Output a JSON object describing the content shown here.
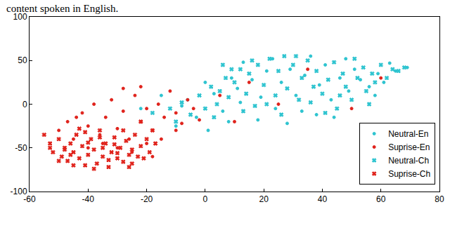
{
  "chart_data": {
    "type": "scatter",
    "annotations": [
      "content spoken in English."
    ],
    "xlim": [
      -60,
      80
    ],
    "xticks": [
      -60,
      -40,
      -20,
      0,
      20,
      40,
      60,
      80
    ],
    "ylim": [
      -100,
      100
    ],
    "yticks": [
      -100,
      -50,
      0,
      50,
      100
    ],
    "grid": false,
    "legend": "lower right",
    "series": [
      {
        "name": "Neutral-En",
        "color": "#2ec4d0",
        "marker": "dot",
        "x": [
          -22,
          -15,
          -10,
          -6,
          -3,
          0,
          3,
          6,
          9,
          11,
          13,
          16,
          19,
          21,
          23,
          26,
          29,
          31,
          34,
          36,
          39,
          41,
          43,
          46,
          49,
          51,
          53,
          56,
          59,
          61,
          63,
          65,
          69,
          1,
          8,
          18,
          28,
          38,
          48,
          58,
          -8,
          12,
          24,
          33,
          44
        ],
        "y": [
          -5,
          10,
          -25,
          5,
          -15,
          25,
          12,
          -8,
          30,
          18,
          48,
          28,
          8,
          38,
          52,
          25,
          40,
          10,
          33,
          55,
          22,
          45,
          5,
          30,
          15,
          40,
          28,
          20,
          35,
          25,
          47,
          38,
          42,
          -30,
          -20,
          -18,
          -22,
          -12,
          52,
          10,
          -2,
          2,
          -5,
          -8,
          -15
        ]
      },
      {
        "name": "Suprise-En",
        "color": "#e0231c",
        "marker": "dot",
        "x": [
          -50,
          -47,
          -45,
          -42,
          -40,
          -38,
          -36,
          -34,
          -32,
          -30,
          -28,
          -26,
          -24,
          -22,
          -20,
          -18,
          -16,
          -14,
          -12,
          -10,
          -8,
          -6,
          -4,
          -2,
          -35,
          -30,
          -25,
          -20,
          -15,
          -40,
          -28,
          -22,
          5,
          10,
          15,
          25,
          35,
          50,
          60,
          -44,
          -18,
          -10
        ],
        "y": [
          -30,
          -20,
          -40,
          -10,
          -25,
          0,
          -35,
          -15,
          5,
          -28,
          -8,
          -40,
          10,
          -20,
          -5,
          -30,
          0,
          -15,
          15,
          -10,
          -22,
          5,
          -5,
          -18,
          -45,
          -50,
          -55,
          -45,
          -40,
          -50,
          18,
          20,
          10,
          -20,
          25,
          0,
          40,
          -5,
          30,
          -15,
          -60,
          -30
        ]
      },
      {
        "name": "Neutral-Ch",
        "color": "#2ec4d0",
        "marker": "x",
        "x": [
          -18,
          -12,
          -8,
          -5,
          -2,
          0,
          2,
          4,
          5,
          7,
          8,
          10,
          12,
          14,
          15,
          17,
          18,
          20,
          22,
          24,
          25,
          27,
          28,
          30,
          32,
          33,
          35,
          37,
          38,
          40,
          42,
          44,
          45,
          47,
          48,
          50,
          52,
          54,
          55,
          57,
          58,
          60,
          62,
          64,
          66,
          68,
          -10,
          3,
          9,
          21,
          31,
          41,
          51,
          13,
          26,
          36,
          46,
          56,
          6,
          16
        ],
        "y": [
          -10,
          -5,
          2,
          -12,
          10,
          -5,
          20,
          0,
          15,
          30,
          8,
          25,
          40,
          12,
          35,
          -2,
          45,
          22,
          52,
          10,
          38,
          55,
          18,
          45,
          5,
          30,
          50,
          20,
          38,
          12,
          28,
          48,
          -5,
          35,
          20,
          5,
          30,
          42,
          15,
          35,
          25,
          45,
          30,
          40,
          38,
          42,
          -20,
          -15,
          40,
          0,
          55,
          -10,
          52,
          -8,
          -12,
          2,
          10,
          0,
          45,
          50
        ]
      },
      {
        "name": "Suprise-Ch",
        "color": "#e0231c",
        "marker": "x",
        "x": [
          -55,
          -53,
          -52,
          -50,
          -49,
          -48,
          -47,
          -46,
          -45,
          -44,
          -43,
          -42,
          -41,
          -40,
          -39,
          -38,
          -37,
          -36,
          -35,
          -34,
          -33,
          -32,
          -31,
          -30,
          -29,
          -28,
          -27,
          -26,
          -25,
          -24,
          -23,
          -22,
          -21,
          -20,
          -19,
          -18,
          -17,
          -50,
          -45,
          -40,
          -35,
          -30,
          -25,
          -38,
          -33,
          -28,
          -43,
          -48,
          -22,
          -36,
          -31,
          -26,
          -41,
          -46,
          -53
        ],
        "y": [
          -35,
          -45,
          -55,
          -40,
          -60,
          -50,
          -65,
          -45,
          -55,
          -35,
          -62,
          -48,
          -70,
          -58,
          -40,
          -52,
          -68,
          -30,
          -60,
          -45,
          -72,
          -55,
          -38,
          -62,
          -50,
          -66,
          -42,
          -58,
          -52,
          -35,
          -60,
          -48,
          -62,
          -40,
          -55,
          -30,
          -45,
          -65,
          -70,
          -44,
          -50,
          -56,
          -68,
          -74,
          -64,
          -30,
          -28,
          -52,
          -20,
          -38,
          -46,
          -72,
          -32,
          -58,
          -50
        ]
      }
    ]
  }
}
